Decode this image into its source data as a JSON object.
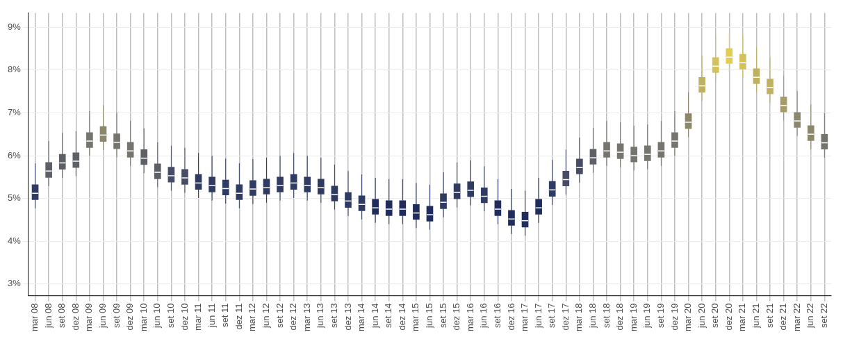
{
  "chart_data": {
    "type": "box",
    "categories": [
      "mar 08",
      "jun 08",
      "set 08",
      "dez 08",
      "mar 09",
      "jun 09",
      "set 09",
      "dez 09",
      "mar 10",
      "jun 10",
      "set 10",
      "dez 10",
      "mar 11",
      "jun 11",
      "set 11",
      "dez 11",
      "mar 12",
      "jun 12",
      "set 12",
      "dez 12",
      "mar 13",
      "jun 13",
      "set 13",
      "dez 13",
      "mar 14",
      "jun 14",
      "set 14",
      "dez 14",
      "mar 15",
      "jun 15",
      "set 15",
      "dez 15",
      "mar 16",
      "jun 16",
      "set 16",
      "dez 16",
      "mar 17",
      "jun 17",
      "set 17",
      "dez 17",
      "mar 18",
      "jun 18",
      "set 18",
      "dez 18",
      "mar 19",
      "jun 19",
      "set 19",
      "dez 19",
      "mar 20",
      "jun 20",
      "set 20",
      "dez 20",
      "mar 21",
      "jun 21",
      "set 21",
      "dez 21",
      "mar 22",
      "jun 22",
      "set 22"
    ],
    "boxes": [
      {
        "low": 4.77,
        "q1": 4.97,
        "median": 5.12,
        "q3": 5.32,
        "high": 5.82
      },
      {
        "low": 5.29,
        "q1": 5.49,
        "median": 5.64,
        "q3": 5.84,
        "high": 6.34
      },
      {
        "low": 5.48,
        "q1": 5.68,
        "median": 5.83,
        "q3": 6.03,
        "high": 6.53
      },
      {
        "low": 5.52,
        "q1": 5.72,
        "median": 5.87,
        "q3": 6.07,
        "high": 6.57
      },
      {
        "low": 5.99,
        "q1": 6.19,
        "median": 6.34,
        "q3": 6.54,
        "high": 7.04
      },
      {
        "low": 6.13,
        "q1": 6.33,
        "median": 6.48,
        "q3": 6.68,
        "high": 7.18
      },
      {
        "low": 5.96,
        "q1": 6.16,
        "median": 6.31,
        "q3": 6.51,
        "high": 7.01
      },
      {
        "low": 5.76,
        "q1": 5.96,
        "median": 6.11,
        "q3": 6.31,
        "high": 6.81
      },
      {
        "low": 5.59,
        "q1": 5.79,
        "median": 5.94,
        "q3": 6.14,
        "high": 6.64
      },
      {
        "low": 5.26,
        "q1": 5.46,
        "median": 5.61,
        "q3": 5.81,
        "high": 6.31
      },
      {
        "low": 5.18,
        "q1": 5.38,
        "median": 5.53,
        "q3": 5.73,
        "high": 6.23
      },
      {
        "low": 5.13,
        "q1": 5.33,
        "median": 5.48,
        "q3": 5.68,
        "high": 6.18
      },
      {
        "low": 5.01,
        "q1": 5.21,
        "median": 5.36,
        "q3": 5.56,
        "high": 6.06
      },
      {
        "low": 4.95,
        "q1": 5.15,
        "median": 5.3,
        "q3": 5.5,
        "high": 6.0
      },
      {
        "low": 4.88,
        "q1": 5.08,
        "median": 5.23,
        "q3": 5.43,
        "high": 5.93
      },
      {
        "low": 4.77,
        "q1": 4.97,
        "median": 5.12,
        "q3": 5.32,
        "high": 5.82
      },
      {
        "low": 4.87,
        "q1": 5.07,
        "median": 5.22,
        "q3": 5.42,
        "high": 5.92
      },
      {
        "low": 4.9,
        "q1": 5.1,
        "median": 5.25,
        "q3": 5.45,
        "high": 5.95
      },
      {
        "low": 4.95,
        "q1": 5.15,
        "median": 5.3,
        "q3": 5.5,
        "high": 6.0
      },
      {
        "low": 5.01,
        "q1": 5.21,
        "median": 5.36,
        "q3": 5.56,
        "high": 6.06
      },
      {
        "low": 4.95,
        "q1": 5.15,
        "median": 5.3,
        "q3": 5.5,
        "high": 6.0
      },
      {
        "low": 4.9,
        "q1": 5.1,
        "median": 5.25,
        "q3": 5.45,
        "high": 5.95
      },
      {
        "low": 4.74,
        "q1": 4.94,
        "median": 5.09,
        "q3": 5.29,
        "high": 5.79
      },
      {
        "low": 4.59,
        "q1": 4.79,
        "median": 4.94,
        "q3": 5.14,
        "high": 5.64
      },
      {
        "low": 4.51,
        "q1": 4.71,
        "median": 4.86,
        "q3": 5.06,
        "high": 5.56
      },
      {
        "low": 4.43,
        "q1": 4.63,
        "median": 4.78,
        "q3": 4.98,
        "high": 5.48
      },
      {
        "low": 4.4,
        "q1": 4.6,
        "median": 4.75,
        "q3": 4.95,
        "high": 5.45
      },
      {
        "low": 4.4,
        "q1": 4.6,
        "median": 4.75,
        "q3": 4.95,
        "high": 5.45
      },
      {
        "low": 4.31,
        "q1": 4.51,
        "median": 4.66,
        "q3": 4.86,
        "high": 5.36
      },
      {
        "low": 4.27,
        "q1": 4.47,
        "median": 4.62,
        "q3": 4.82,
        "high": 5.32
      },
      {
        "low": 4.56,
        "q1": 4.76,
        "median": 4.91,
        "q3": 5.11,
        "high": 5.61
      },
      {
        "low": 4.79,
        "q1": 4.99,
        "median": 5.14,
        "q3": 5.34,
        "high": 5.84
      },
      {
        "low": 4.84,
        "q1": 5.04,
        "median": 5.19,
        "q3": 5.39,
        "high": 5.89
      },
      {
        "low": 4.7,
        "q1": 4.9,
        "median": 5.05,
        "q3": 5.25,
        "high": 5.75
      },
      {
        "low": 4.4,
        "q1": 4.6,
        "median": 4.75,
        "q3": 4.95,
        "high": 5.45
      },
      {
        "low": 4.17,
        "q1": 4.37,
        "median": 4.52,
        "q3": 4.72,
        "high": 5.22
      },
      {
        "low": 4.13,
        "q1": 4.33,
        "median": 4.48,
        "q3": 4.68,
        "high": 5.18
      },
      {
        "low": 4.43,
        "q1": 4.63,
        "median": 4.78,
        "q3": 4.98,
        "high": 5.48
      },
      {
        "low": 4.85,
        "q1": 5.05,
        "median": 5.2,
        "q3": 5.4,
        "high": 5.9
      },
      {
        "low": 5.09,
        "q1": 5.29,
        "median": 5.44,
        "q3": 5.64,
        "high": 6.14
      },
      {
        "low": 5.37,
        "q1": 5.57,
        "median": 5.72,
        "q3": 5.92,
        "high": 6.42
      },
      {
        "low": 5.6,
        "q1": 5.8,
        "median": 5.95,
        "q3": 6.15,
        "high": 6.65
      },
      {
        "low": 5.76,
        "q1": 5.96,
        "median": 6.11,
        "q3": 6.31,
        "high": 6.81
      },
      {
        "low": 5.73,
        "q1": 5.93,
        "median": 6.08,
        "q3": 6.28,
        "high": 6.78
      },
      {
        "low": 5.65,
        "q1": 5.85,
        "median": 6.0,
        "q3": 6.2,
        "high": 6.7
      },
      {
        "low": 5.68,
        "q1": 5.88,
        "median": 6.03,
        "q3": 6.23,
        "high": 6.73
      },
      {
        "low": 5.76,
        "q1": 5.96,
        "median": 6.11,
        "q3": 6.31,
        "high": 6.81
      },
      {
        "low": 5.99,
        "q1": 6.19,
        "median": 6.34,
        "q3": 6.54,
        "high": 7.04
      },
      {
        "low": 6.43,
        "q1": 6.63,
        "median": 6.78,
        "q3": 6.98,
        "high": 7.48
      },
      {
        "low": 7.28,
        "q1": 7.48,
        "median": 7.63,
        "q3": 7.83,
        "high": 8.33
      },
      {
        "low": 7.74,
        "q1": 7.94,
        "median": 8.09,
        "q3": 8.29,
        "high": 8.79
      },
      {
        "low": 7.95,
        "q1": 8.15,
        "median": 8.3,
        "q3": 8.5,
        "high": 8.85
      },
      {
        "low": 7.82,
        "q1": 8.02,
        "median": 8.17,
        "q3": 8.37,
        "high": 8.8
      },
      {
        "low": 7.48,
        "q1": 7.68,
        "median": 7.83,
        "q3": 8.03,
        "high": 8.53
      },
      {
        "low": 7.24,
        "q1": 7.44,
        "median": 7.59,
        "q3": 7.79,
        "high": 8.29
      },
      {
        "low": 6.82,
        "q1": 7.02,
        "median": 7.17,
        "q3": 7.37,
        "high": 7.87
      },
      {
        "low": 6.46,
        "q1": 6.66,
        "median": 6.81,
        "q3": 7.01,
        "high": 7.51
      },
      {
        "low": 6.15,
        "q1": 6.35,
        "median": 6.5,
        "q3": 6.7,
        "high": 7.2
      },
      {
        "low": 5.95,
        "q1": 6.15,
        "median": 6.3,
        "q3": 6.5,
        "high": 7.0
      }
    ],
    "colors": [
      "#2f3b62",
      "#5e6068",
      "#5e6068",
      "#5e6068",
      "#75746d",
      "#8c876c",
      "#75746d",
      "#75746d",
      "#5e6068",
      "#5e6068",
      "#464c66",
      "#464c66",
      "#2f3b62",
      "#2f3b62",
      "#2f3b62",
      "#2f3b62",
      "#2f3b62",
      "#2f3b62",
      "#2f3b62",
      "#2f3b62",
      "#2f3b62",
      "#2f3b62",
      "#2f3b62",
      "#2f3b62",
      "#2f3b62",
      "#1f2c5c",
      "#1f2c5c",
      "#1f2c5c",
      "#1f2c5c",
      "#1f2c5c",
      "#2f3b62",
      "#2f3b62",
      "#2f3b62",
      "#2f3b62",
      "#1f2c5c",
      "#1f2c5c",
      "#1f2c5c",
      "#1f2c5c",
      "#2f3b62",
      "#464c66",
      "#464c66",
      "#5e6068",
      "#75746d",
      "#75746d",
      "#75746d",
      "#75746d",
      "#75746d",
      "#75746d",
      "#8c876c",
      "#bfb062",
      "#d5c15a",
      "#e3cc52",
      "#d5c15a",
      "#bfb062",
      "#bfb062",
      "#a59c68",
      "#8c876c",
      "#8c876c",
      "#75746d"
    ],
    "ylim": [
      2.73,
      9.33
    ],
    "yticks": [
      {
        "value": 3,
        "label": "3%"
      },
      {
        "value": 4,
        "label": "4%"
      },
      {
        "value": 5,
        "label": "5%"
      },
      {
        "value": 6,
        "label": "6%"
      },
      {
        "value": 7,
        "label": "7%"
      },
      {
        "value": 8,
        "label": "8%"
      },
      {
        "value": 9,
        "label": "9%"
      }
    ],
    "grid": true
  }
}
